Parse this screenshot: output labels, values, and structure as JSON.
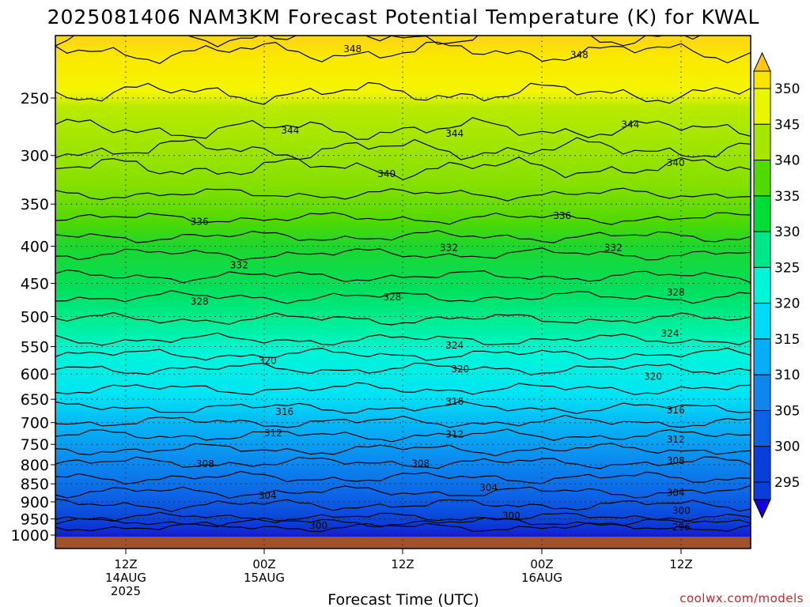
{
  "chart_data": {
    "type": "heatmap",
    "title": "2025081406 NAM3KM Forecast Potential Temperature (K) for KWAL",
    "xlabel": "Forecast Time (UTC)",
    "ylabel": "",
    "credit": "coolwx.com/models",
    "y_scale": "log-pressure",
    "y_ticks": [
      "250",
      "300",
      "350",
      "400",
      "450",
      "500",
      "550",
      "600",
      "650",
      "700",
      "750",
      "800",
      "850",
      "900",
      "950",
      "1000"
    ],
    "ylim_hpa": [
      1013,
      200
    ],
    "x_ticks": [
      {
        "label": "12Z",
        "date": "14AUG",
        "year": "2025"
      },
      {
        "label": "00Z",
        "date": "15AUG",
        "year": ""
      },
      {
        "label": "12Z",
        "date": "",
        "year": ""
      },
      {
        "label": "00Z",
        "date": "16AUG",
        "year": ""
      },
      {
        "label": "12Z",
        "date": "",
        "year": ""
      }
    ],
    "x_range_hours": [
      0,
      60
    ],
    "grid": true,
    "colorbar_levels": [
      "295",
      "300",
      "305",
      "310",
      "315",
      "320",
      "325",
      "330",
      "335",
      "340",
      "345",
      "350"
    ],
    "colorbar_colors": [
      "#1400d6",
      "#0a3ed8",
      "#0d61e4",
      "#0e86ee",
      "#07adf6",
      "#00d9f7",
      "#00f5d9",
      "#00e48a",
      "#00dc38",
      "#52d900",
      "#a6e600",
      "#e8f600",
      "#fbe500",
      "#fdc617"
    ],
    "contour_labels": [
      {
        "text": "348",
        "time_h": 20.0,
        "p_hpa": 214
      },
      {
        "text": "348",
        "time_h": 40.0,
        "p_hpa": 218
      },
      {
        "text": "344",
        "time_h": 14.5,
        "p_hpa": 277
      },
      {
        "text": "344",
        "time_h": 29.0,
        "p_hpa": 280
      },
      {
        "text": "344",
        "time_h": 44.5,
        "p_hpa": 272
      },
      {
        "text": "340",
        "time_h": 23.0,
        "p_hpa": 318
      },
      {
        "text": "340",
        "time_h": 48.5,
        "p_hpa": 307
      },
      {
        "text": "336",
        "time_h": 6.5,
        "p_hpa": 370
      },
      {
        "text": "336",
        "time_h": 38.5,
        "p_hpa": 363
      },
      {
        "text": "332",
        "time_h": 10.0,
        "p_hpa": 425
      },
      {
        "text": "332",
        "time_h": 28.5,
        "p_hpa": 402
      },
      {
        "text": "332",
        "time_h": 43.0,
        "p_hpa": 402
      },
      {
        "text": "328",
        "time_h": 6.5,
        "p_hpa": 477
      },
      {
        "text": "328",
        "time_h": 23.5,
        "p_hpa": 470
      },
      {
        "text": "328",
        "time_h": 48.5,
        "p_hpa": 463
      },
      {
        "text": "324",
        "time_h": 29.0,
        "p_hpa": 548
      },
      {
        "text": "324",
        "time_h": 48.0,
        "p_hpa": 528
      },
      {
        "text": "320",
        "time_h": 12.5,
        "p_hpa": 575
      },
      {
        "text": "320",
        "time_h": 29.5,
        "p_hpa": 591
      },
      {
        "text": "320",
        "time_h": 46.5,
        "p_hpa": 605
      },
      {
        "text": "316",
        "time_h": 14.0,
        "p_hpa": 676
      },
      {
        "text": "316",
        "time_h": 29.0,
        "p_hpa": 655
      },
      {
        "text": "316",
        "time_h": 48.5,
        "p_hpa": 673
      },
      {
        "text": "312",
        "time_h": 13.0,
        "p_hpa": 724
      },
      {
        "text": "312",
        "time_h": 29.0,
        "p_hpa": 726
      },
      {
        "text": "312",
        "time_h": 48.5,
        "p_hpa": 738
      },
      {
        "text": "308",
        "time_h": 7.0,
        "p_hpa": 798
      },
      {
        "text": "308",
        "time_h": 26.0,
        "p_hpa": 797
      },
      {
        "text": "308",
        "time_h": 48.5,
        "p_hpa": 790
      },
      {
        "text": "304",
        "time_h": 12.5,
        "p_hpa": 882
      },
      {
        "text": "304",
        "time_h": 32.0,
        "p_hpa": 860
      },
      {
        "text": "304",
        "time_h": 48.5,
        "p_hpa": 875
      },
      {
        "text": "300",
        "time_h": 17.0,
        "p_hpa": 970
      },
      {
        "text": "300",
        "time_h": 34.0,
        "p_hpa": 940
      },
      {
        "text": "300",
        "time_h": 49.0,
        "p_hpa": 925
      },
      {
        "text": "296",
        "time_h": 49.0,
        "p_hpa": 975
      }
    ]
  }
}
